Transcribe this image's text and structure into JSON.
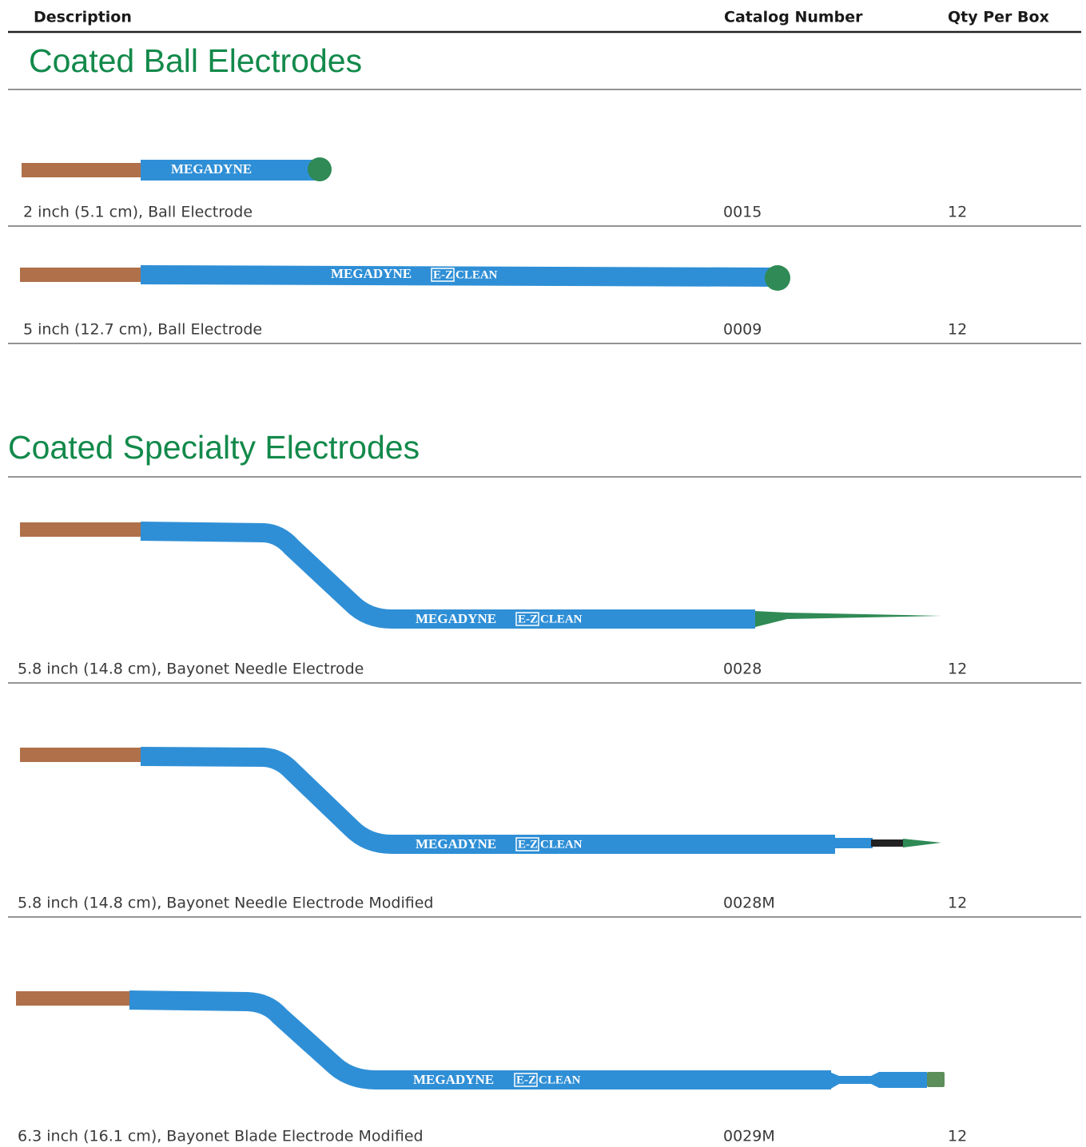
{
  "header": {
    "columns": [
      "Description",
      "Catalog Number",
      "Qty Per Box"
    ]
  },
  "imprint": {
    "brand": "MEGADYNE",
    "badge": "E-Z",
    "word": "CLEAN"
  },
  "sections": [
    {
      "title": "Coated Ball Electrodes",
      "items": [
        {
          "description": "2 inch (5.1 cm), Ball Electrode",
          "catalog_number": "0015",
          "qty_per_box": 12
        },
        {
          "description": "5 inch (12.7 cm), Ball Electrode",
          "catalog_number": "0009",
          "qty_per_box": 12
        }
      ]
    },
    {
      "title": "Coated Specialty Electrodes",
      "items": [
        {
          "description": "5.8 inch (14.8 cm), Bayonet Needle Electrode",
          "catalog_number": "0028",
          "qty_per_box": 12
        },
        {
          "description": "5.8 inch (14.8 cm), Bayonet Needle Electrode Modified",
          "catalog_number": "0028M",
          "qty_per_box": 12
        },
        {
          "description": "6.3 inch (16.1 cm), Bayonet Blade Electrode Modified",
          "catalog_number": "0029M",
          "qty_per_box": 12
        }
      ]
    }
  ]
}
